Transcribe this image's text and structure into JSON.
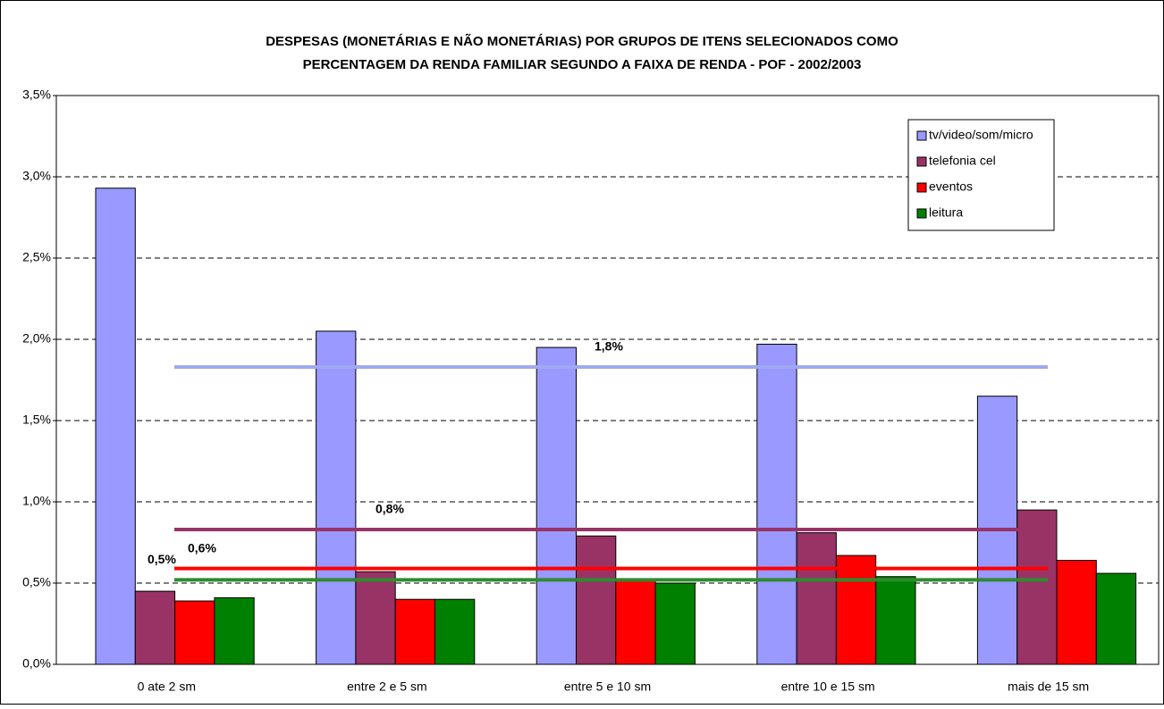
{
  "chart_data": {
    "type": "bar",
    "title": [
      "DESPESAS (MONETÁRIAS E NÃO MONETÁRIAS) POR GRUPOS DE ITENS SELECIONADOS COMO",
      "PERCENTAGEM DA RENDA FAMILIAR  SEGUNDO A FAIXA DE RENDA - POF - 2002/2003"
    ],
    "categories": [
      "0 ate 2 sm",
      "entre 2 e 5 sm",
      "entre 5 e 10 sm",
      "entre 10 e 15 sm",
      "mais de 15 sm"
    ],
    "series": [
      {
        "name": "tv/video/som/micro",
        "color": "#9999ff",
        "values": [
          2.93,
          2.05,
          1.95,
          1.97,
          1.65
        ]
      },
      {
        "name": "telefonia cel",
        "color": "#993366",
        "values": [
          0.45,
          0.57,
          0.79,
          0.81,
          0.95
        ]
      },
      {
        "name": "eventos",
        "color": "#ff0000",
        "values": [
          0.39,
          0.4,
          0.52,
          0.67,
          0.64
        ]
      },
      {
        "name": "leitura",
        "color": "#008000",
        "values": [
          0.41,
          0.4,
          0.5,
          0.54,
          0.56
        ]
      }
    ],
    "averages": [
      {
        "value": 1.83,
        "label": "1,8%",
        "color": "#9fa8f0"
      },
      {
        "value": 0.83,
        "label": "0,8%",
        "color": "#993366"
      },
      {
        "value": 0.59,
        "label": "0,6%",
        "color": "#ff0000"
      },
      {
        "value": 0.52,
        "label": "0,5%",
        "color": "#2e8b2e"
      }
    ],
    "ylim": [
      0,
      3.5
    ],
    "yticks": [
      {
        "value": 0,
        "label": "0,0%"
      },
      {
        "value": 0.5,
        "label": "0,5%"
      },
      {
        "value": 1,
        "label": "1,0%"
      },
      {
        "value": 1.5,
        "label": "1,5%"
      },
      {
        "value": 2,
        "label": "2,0%"
      },
      {
        "value": 2.5,
        "label": "2,5%"
      },
      {
        "value": 3,
        "label": "3,0%"
      },
      {
        "value": 3.5,
        "label": "3,5%"
      }
    ],
    "grid": true,
    "legend": "upper right"
  }
}
